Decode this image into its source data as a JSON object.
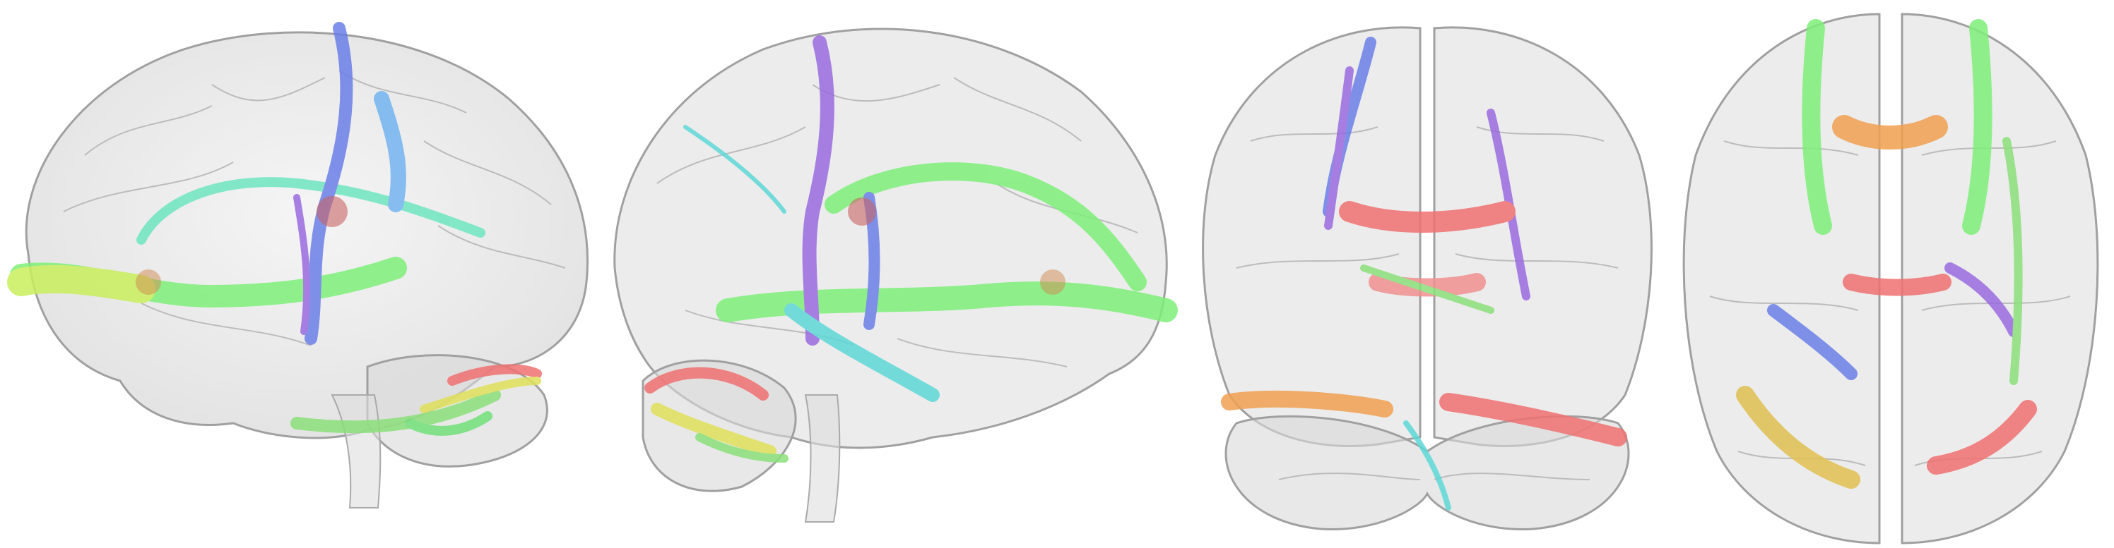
{
  "figure": {
    "description_visible_text": "",
    "panels": [
      {
        "view": "left-lateral",
        "icon": "brain-left-lateral-icon"
      },
      {
        "view": "right-lateral",
        "icon": "brain-right-lateral-icon"
      },
      {
        "view": "posterior",
        "icon": "brain-posterior-icon"
      },
      {
        "view": "inferior-axial",
        "icon": "brain-axial-icon"
      }
    ],
    "colors": {
      "background": "#ffffff",
      "brain_fill": "#d9d9d9",
      "brain_stroke": "#a8a8a8",
      "tract_green": "#7ef07a",
      "tract_yellow_green": "#c9ef5c",
      "tract_blue": "#6b7fe8",
      "tract_purple": "#9a6be0",
      "tract_cyan": "#5fd8d8",
      "tract_red": "#f07070",
      "tract_orange": "#f0a050"
    }
  }
}
